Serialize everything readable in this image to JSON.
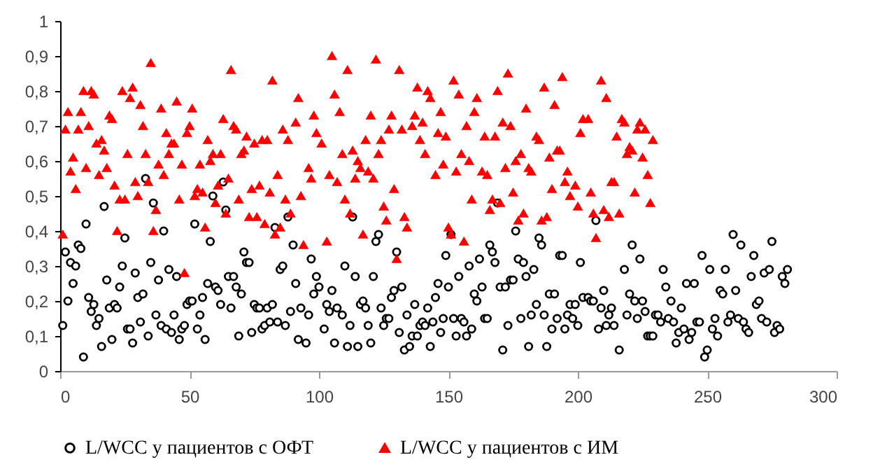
{
  "chart_data": {
    "type": "scatter",
    "xlim": [
      0,
      300
    ],
    "ylim": [
      0,
      1
    ],
    "xticks": [
      0,
      50,
      100,
      150,
      200,
      250,
      300
    ],
    "yticks": [
      0,
      {
        "value": 0.1,
        "label": "0,1"
      },
      {
        "value": 0.2,
        "label": "0,2"
      },
      {
        "value": 0.3,
        "label": "0,3"
      },
      {
        "value": 0.4,
        "label": "0,4"
      },
      {
        "value": 0.5,
        "label": "0,5"
      },
      {
        "value": 0.6,
        "label": "0,6"
      },
      {
        "value": 0.7,
        "label": "0,7"
      },
      {
        "value": 0.8,
        "label": "0,8"
      },
      {
        "value": 0.9,
        "label": "0,9"
      },
      1
    ],
    "legend": "bottom",
    "series": [
      {
        "name": "L/WCC  у пациентов с ОФТ",
        "color": "#000000",
        "marker": "circle",
        "x": [
          1,
          2,
          3,
          4,
          5,
          6,
          7,
          8,
          9,
          10,
          11,
          12,
          13,
          14,
          15,
          16,
          17,
          18,
          19,
          20,
          21,
          22,
          23,
          24,
          25,
          26,
          27,
          28,
          29,
          30,
          31,
          32,
          33,
          34,
          35,
          36,
          37,
          38,
          39,
          40,
          41,
          42,
          43,
          44,
          45,
          46,
          47,
          48,
          49,
          50,
          51,
          52,
          53,
          54,
          55,
          56,
          57,
          58,
          59,
          60,
          61,
          62,
          63,
          64,
          65,
          66,
          67,
          68,
          69,
          70,
          71,
          72,
          73,
          74,
          75,
          76,
          77,
          78,
          79,
          80,
          81,
          82,
          83,
          84,
          85,
          86,
          87,
          88,
          89,
          90,
          91,
          92,
          93,
          95,
          96,
          97,
          98,
          99,
          100,
          102,
          103,
          104,
          105,
          106,
          107,
          109,
          110,
          111,
          112,
          113,
          114,
          115,
          116,
          117,
          118,
          119,
          120,
          121,
          122,
          123,
          124,
          125,
          126,
          127,
          128,
          129,
          130,
          131,
          132,
          133,
          134,
          135,
          136,
          137,
          138,
          139,
          140,
          141,
          142,
          143,
          144,
          145,
          146,
          147,
          148,
          149,
          150,
          151,
          152,
          153,
          154,
          155,
          156,
          157,
          158,
          159,
          160,
          161,
          162,
          163,
          164,
          165,
          166,
          167,
          168,
          169,
          170,
          171,
          172,
          173,
          174,
          175,
          176,
          177,
          178,
          179,
          180,
          181,
          182,
          183,
          184,
          185,
          186,
          187,
          188,
          189,
          190,
          191,
          192,
          193,
          194,
          195,
          196,
          197,
          198,
          199,
          200,
          201,
          202,
          204,
          205,
          206,
          207,
          208,
          209,
          210,
          211,
          212,
          213,
          214,
          216,
          218,
          219,
          220,
          221,
          222,
          223,
          224,
          225,
          226,
          227,
          228,
          229,
          230,
          231,
          232,
          233,
          234,
          235,
          236,
          237,
          238,
          239,
          240,
          241,
          242,
          243,
          244,
          245,
          246,
          247,
          248,
          249,
          250,
          251,
          252,
          253,
          254,
          255,
          256,
          257,
          258,
          259,
          260,
          261,
          262,
          263,
          264,
          265,
          266,
          267,
          268,
          269,
          270,
          271,
          272,
          273,
          274,
          275,
          276,
          277,
          278,
          279,
          280,
          281
        ],
        "values": [
          0.13,
          0.34,
          0.2,
          0.31,
          0.25,
          0.3,
          0.36,
          0.35,
          0.04,
          0.42,
          0.21,
          0.17,
          0.19,
          0.13,
          0.15,
          0.07,
          0.47,
          0.26,
          0.18,
          0.09,
          0.19,
          0.18,
          0.24,
          0.3,
          0.38,
          0.12,
          0.12,
          0.08,
          0.28,
          0.21,
          0.14,
          0.22,
          0.55,
          0.1,
          0.31,
          0.48,
          0.16,
          0.26,
          0.13,
          0.4,
          0.12,
          0.29,
          0.11,
          0.16,
          0.27,
          0.09,
          0.12,
          0.13,
          0.19,
          0.2,
          0.2,
          0.42,
          0.12,
          0.16,
          0.21,
          0.09,
          0.25,
          0.37,
          0.5,
          0.24,
          0.23,
          0.19,
          0.54,
          0.46,
          0.27,
          0.18,
          0.27,
          0.24,
          0.1,
          0.22,
          0.34,
          0.31,
          0.31,
          0.11,
          0.19,
          0.18,
          0.18,
          0.12,
          0.13,
          0.18,
          0.14,
          0.19,
          0.41,
          0.14,
          0.29,
          0.3,
          0.13,
          0.44,
          0.17,
          0.36,
          0.25,
          0.09,
          0.18,
          0.08,
          0.16,
          0.32,
          0.22,
          0.27,
          0.24,
          0.12,
          0.19,
          0.17,
          0.23,
          0.08,
          0.18,
          0.16,
          0.3,
          0.07,
          0.13,
          0.44,
          0.27,
          0.07,
          0.19,
          0.2,
          0.18,
          0.13,
          0.08,
          0.27,
          0.37,
          0.39,
          0.18,
          0.13,
          0.15,
          0.15,
          0.21,
          0.23,
          0.34,
          0.11,
          0.24,
          0.06,
          0.16,
          0.07,
          0.1,
          0.19,
          0.1,
          0.13,
          0.14,
          0.13,
          0.18,
          0.07,
          0.14,
          0.21,
          0.25,
          0.11,
          0.15,
          0.33,
          0.24,
          0.39,
          0.15,
          0.1,
          0.27,
          0.15,
          0.14,
          0.1,
          0.3,
          0.12,
          0.22,
          0.2,
          0.32,
          0.24,
          0.15,
          0.15,
          0.36,
          0.34,
          0.31,
          0.48,
          0.24,
          0.06,
          0.24,
          0.13,
          0.26,
          0.26,
          0.4,
          0.32,
          0.15,
          0.31,
          0.27,
          0.07,
          0.16,
          0.29,
          0.19,
          0.38,
          0.36,
          0.16,
          0.07,
          0.22,
          0.12,
          0.22,
          0.15,
          0.33,
          0.33,
          0.12,
          0.16,
          0.19,
          0.15,
          0.19,
          0.13,
          0.31,
          0.21,
          0.21,
          0.2,
          0.2,
          0.43,
          0.12,
          0.18,
          0.23,
          0.13,
          0.16,
          0.18,
          0.13,
          0.06,
          0.29,
          0.16,
          0.22,
          0.36,
          0.2,
          0.15,
          0.32,
          0.2,
          0.17,
          0.1,
          0.1,
          0.1,
          0.16,
          0.16,
          0.14,
          0.29,
          0.24,
          0.15,
          0.2,
          0.14,
          0.08,
          0.11,
          0.18,
          0.12,
          0.25,
          0.09,
          0.11,
          0.25,
          0.14,
          0.14,
          0.33,
          0.04,
          0.06,
          0.29,
          0.12,
          0.15,
          0.1,
          0.23,
          0.22,
          0.29,
          0.14,
          0.16,
          0.39,
          0.23,
          0.15,
          0.36,
          0.14,
          0.12,
          0.11,
          0.27,
          0.33,
          0.19,
          0.2,
          0.15,
          0.28,
          0.14,
          0.29,
          0.37,
          0.11,
          0.13,
          0.12,
          0.27,
          0.25,
          0.29
        ]
      },
      {
        "name": "L/WCC у  пациентов с ИМ",
        "color": "#ff0000",
        "marker": "triangle",
        "x": [
          1,
          2,
          3,
          4,
          5,
          6,
          7,
          8,
          9,
          10,
          11,
          12,
          13,
          14,
          15,
          16,
          17,
          18,
          19,
          20,
          21,
          22,
          23,
          24,
          25,
          26,
          27,
          28,
          29,
          30,
          31,
          32,
          33,
          34,
          35,
          36,
          37,
          38,
          39,
          40,
          41,
          42,
          43,
          44,
          45,
          46,
          47,
          48,
          49,
          50,
          51,
          52,
          53,
          54,
          55,
          56,
          57,
          58,
          59,
          60,
          61,
          62,
          63,
          64,
          65,
          66,
          67,
          68,
          69,
          70,
          71,
          72,
          73,
          74,
          75,
          76,
          77,
          78,
          79,
          80,
          81,
          82,
          83,
          84,
          85,
          86,
          87,
          88,
          89,
          91,
          92,
          93,
          94,
          96,
          97,
          98,
          99,
          101,
          103,
          104,
          105,
          106,
          107,
          108,
          109,
          110,
          111,
          112,
          113,
          114,
          115,
          116,
          117,
          118,
          119,
          120,
          121,
          122,
          123,
          124,
          125,
          126,
          127,
          128,
          129,
          130,
          131,
          132,
          133,
          134,
          136,
          137,
          138,
          139,
          140,
          141,
          142,
          143,
          145,
          146,
          147,
          148,
          149,
          150,
          151,
          152,
          153,
          154,
          155,
          156,
          157,
          158,
          159,
          160,
          161,
          163,
          164,
          165,
          166,
          167,
          168,
          169,
          170,
          171,
          172,
          173,
          174,
          175,
          176,
          177,
          178,
          179,
          180,
          181,
          182,
          184,
          185,
          186,
          187,
          188,
          189,
          190,
          191,
          192,
          193,
          194,
          195,
          196,
          197,
          199,
          200,
          201,
          202,
          204,
          205,
          206,
          207,
          209,
          210,
          211,
          212,
          213,
          214,
          215,
          216,
          217,
          218,
          219,
          220,
          221,
          222,
          223,
          224,
          225,
          226,
          227,
          228,
          229
        ],
        "values": [
          0.39,
          0.69,
          0.74,
          0.57,
          0.61,
          0.52,
          0.69,
          0.74,
          0.8,
          0.58,
          0.7,
          0.8,
          0.79,
          0.65,
          0.56,
          0.66,
          0.63,
          0.58,
          0.73,
          0.72,
          0.53,
          0.4,
          0.49,
          0.8,
          0.49,
          0.62,
          0.78,
          0.81,
          0.54,
          0.5,
          0.76,
          0.7,
          0.62,
          0.54,
          0.88,
          0.4,
          0.46,
          0.59,
          0.75,
          0.56,
          0.68,
          0.62,
          0.65,
          0.65,
          0.77,
          0.49,
          0.59,
          0.28,
          0.68,
          0.7,
          0.75,
          0.5,
          0.52,
          0.59,
          0.51,
          0.41,
          0.66,
          0.6,
          0.62,
          0.48,
          0.53,
          0.62,
          0.72,
          0.45,
          0.55,
          0.86,
          0.7,
          0.69,
          0.49,
          0.62,
          0.63,
          0.67,
          0.44,
          0.52,
          0.65,
          0.44,
          0.53,
          0.66,
          0.42,
          0.66,
          0.51,
          0.83,
          0.39,
          0.56,
          0.41,
          0.69,
          0.49,
          0.66,
          0.45,
          0.71,
          0.78,
          0.5,
          0.36,
          0.58,
          0.55,
          0.73,
          0.68,
          0.65,
          0.37,
          0.56,
          0.9,
          0.79,
          0.54,
          0.74,
          0.62,
          0.49,
          0.86,
          0.45,
          0.63,
          0.55,
          0.6,
          0.58,
          0.39,
          0.66,
          0.57,
          0.73,
          0.55,
          0.89,
          0.62,
          0.66,
          0.47,
          0.43,
          0.69,
          0.73,
          0.52,
          0.32,
          0.86,
          0.69,
          0.44,
          0.41,
          0.7,
          0.73,
          0.81,
          0.66,
          0.71,
          0.62,
          0.8,
          0.78,
          0.56,
          0.68,
          0.74,
          0.59,
          0.67,
          0.41,
          0.39,
          0.83,
          0.57,
          0.79,
          0.62,
          0.37,
          0.7,
          0.6,
          0.49,
          0.74,
          0.78,
          0.57,
          0.67,
          0.56,
          0.46,
          0.49,
          0.67,
          0.8,
          0.48,
          0.71,
          0.58,
          0.85,
          0.7,
          0.51,
          0.6,
          0.43,
          0.62,
          0.45,
          0.75,
          0.58,
          0.57,
          0.67,
          0.66,
          0.43,
          0.81,
          0.44,
          0.61,
          0.52,
          0.76,
          0.63,
          0.63,
          0.84,
          0.54,
          0.57,
          0.5,
          0.53,
          0.47,
          0.68,
          0.72,
          0.72,
          0.51,
          0.45,
          0.38,
          0.83,
          0.46,
          0.78,
          0.44,
          0.54,
          0.54,
          0.67,
          0.45,
          0.72,
          0.71,
          0.62,
          0.64,
          0.63,
          0.51,
          0.69,
          0.71,
          0.61,
          0.69,
          0.56,
          0.48,
          0.66
        ]
      }
    ]
  }
}
